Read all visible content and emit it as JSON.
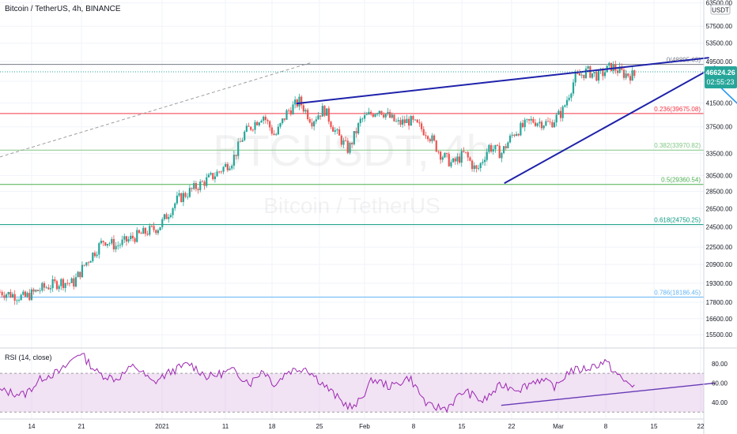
{
  "header": {
    "title": "Bitcoin / TetherUS, 4h, BINANCE",
    "currency": "USDT",
    "watermark_symbol": "BTCUSDT, 4h",
    "watermark_name": "Bitcoin / TetherUS"
  },
  "price_tag": {
    "price": "46624.26",
    "countdown": "02:55:23",
    "color": "#26a69a"
  },
  "chart_data": [
    {
      "type": "candlestick",
      "title": "Bitcoin / TetherUS, 4h, BINANCE",
      "y_scale": "log",
      "ylim": [
        14800,
        63000
      ],
      "y_ticks": [
        "15500.00",
        "16600.00",
        "17800.00",
        "19300.00",
        "20900.00",
        "22500.00",
        "24500.00",
        "26500.00",
        "28500.00",
        "30500.00",
        "33500.00",
        "37500.00",
        "41500.00",
        "45500.00",
        "49500.00",
        "53500.00",
        "57500.00",
        "63500.00"
      ],
      "x_ticks": [
        "14",
        "21",
        "2021",
        "11",
        "18",
        "25",
        "Feb",
        "8",
        "15",
        "22",
        "Mar",
        "8",
        "15",
        "22"
      ],
      "up_color": "#26a69a",
      "down_color": "#ef5350",
      "price_path": [
        [
          0,
          18600
        ],
        [
          4,
          18150
        ],
        [
          7,
          18900
        ],
        [
          10,
          19400
        ],
        [
          12,
          19300
        ],
        [
          14,
          21000
        ],
        [
          17,
          23200
        ],
        [
          19,
          22600
        ],
        [
          22,
          23500
        ],
        [
          26,
          24500
        ],
        [
          29,
          27500
        ],
        [
          32,
          29000
        ],
        [
          35,
          30500
        ],
        [
          38,
          32500
        ],
        [
          40,
          36500
        ],
        [
          43,
          39500
        ],
        [
          45,
          36000
        ],
        [
          47,
          40000
        ],
        [
          49,
          41800
        ],
        [
          51,
          38500
        ],
        [
          53,
          40500
        ],
        [
          55,
          36500
        ],
        [
          57,
          34000
        ],
        [
          59,
          38500
        ],
        [
          62,
          40500
        ],
        [
          65,
          38000
        ],
        [
          67,
          38500
        ],
        [
          70,
          36500
        ],
        [
          72,
          33500
        ],
        [
          74,
          32000
        ],
        [
          76,
          33500
        ],
        [
          78,
          31000
        ],
        [
          80,
          34500
        ],
        [
          82,
          33500
        ],
        [
          84,
          36500
        ],
        [
          87,
          38500
        ],
        [
          90,
          38000
        ],
        [
          92,
          40000
        ],
        [
          94,
          46000
        ],
        [
          96,
          47500
        ],
        [
          98,
          46500
        ],
        [
          100,
          48500
        ],
        [
          102,
          47000
        ],
        [
          104,
          46624
        ]
      ],
      "fibonacci": [
        {
          "label": "0(48895.65)",
          "price": 48895.65,
          "color": "#787b86"
        },
        {
          "label": "0.236(39675.08)",
          "price": 39675.08,
          "color": "#f23645"
        },
        {
          "label": "0.382(33970.82)",
          "price": 33970.82,
          "color": "#81c784"
        },
        {
          "label": "0.5(29360.54)",
          "price": 29360.54,
          "color": "#4caf50"
        },
        {
          "label": "0.618(24750.25)",
          "price": 24750.25,
          "color": "#089981"
        },
        {
          "label": "0.786(18186.45)",
          "price": 18186.45,
          "color": "#64b5f6"
        }
      ],
      "trendlines": [
        {
          "from": [
            48.5,
            41400
          ],
          "to": [
            116,
            50300
          ],
          "color": "#1e22aa"
        },
        {
          "from": [
            82.5,
            29500
          ],
          "to": [
            117,
            48500
          ],
          "color": "#1e22aa"
        }
      ],
      "projection": {
        "points": [
          [
            116,
            46500
          ],
          [
            122,
            40000
          ],
          [
            128,
            43000
          ],
          [
            134,
            34500
          ]
        ],
        "color": "#2196f3"
      },
      "dashed_line": {
        "from": [
          0,
          33000
        ],
        "to": [
          51,
          49300
        ],
        "color": "#9e9e9e"
      }
    },
    {
      "type": "line",
      "title": "RSI (14, close)",
      "ylim": [
        27,
        92
      ],
      "y_ticks": [
        "80.00",
        "60.00",
        "40.00"
      ],
      "band": [
        30,
        70
      ],
      "line_color": "#9c27b0",
      "band_color": "#e1bee7",
      "rsi_path": [
        [
          0,
          52
        ],
        [
          4,
          48
        ],
        [
          7,
          66
        ],
        [
          10,
          72
        ],
        [
          13,
          92
        ],
        [
          16,
          70
        ],
        [
          19,
          64
        ],
        [
          22,
          78
        ],
        [
          25,
          60
        ],
        [
          28,
          72
        ],
        [
          31,
          80
        ],
        [
          34,
          66
        ],
        [
          38,
          73
        ],
        [
          41,
          60
        ],
        [
          43,
          74
        ],
        [
          45,
          58
        ],
        [
          47,
          72
        ],
        [
          50,
          76
        ],
        [
          53,
          58
        ],
        [
          56,
          40
        ],
        [
          58,
          34
        ],
        [
          61,
          64
        ],
        [
          64,
          56
        ],
        [
          67,
          66
        ],
        [
          70,
          36
        ],
        [
          73,
          34
        ],
        [
          76,
          52
        ],
        [
          79,
          41
        ],
        [
          82,
          58
        ],
        [
          85,
          54
        ],
        [
          88,
          64
        ],
        [
          91,
          56
        ],
        [
          93,
          72
        ],
        [
          96,
          75
        ],
        [
          99,
          82
        ],
        [
          102,
          62
        ],
        [
          104,
          57
        ]
      ],
      "trendline": {
        "from": [
          82,
          37
        ],
        "to": [
          117,
          60
        ],
        "color": "#673ab7"
      }
    }
  ]
}
